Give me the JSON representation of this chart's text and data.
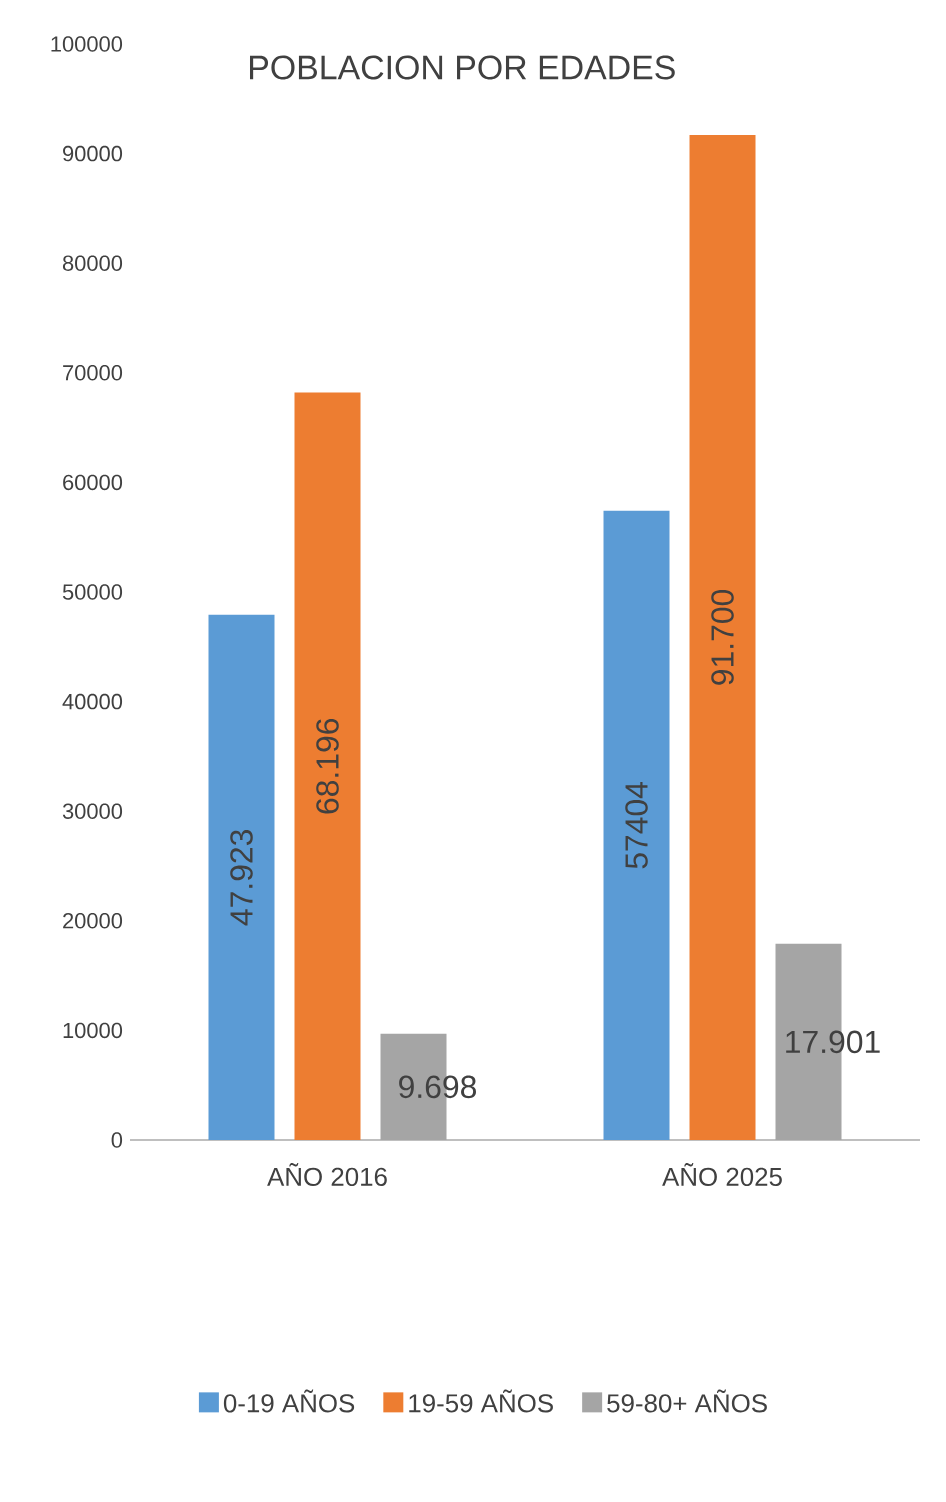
{
  "chart_data": {
    "type": "bar",
    "title": "POBLACION POR EDADES",
    "categories": [
      "AÑO 2016",
      "AÑO 2025"
    ],
    "series": [
      {
        "name": "0-19 AÑOS",
        "color": "#5b9bd5",
        "values": [
          47923,
          57404
        ],
        "value_labels": [
          "47.923",
          "57404"
        ]
      },
      {
        "name": "19-59 AÑOS",
        "color": "#ed7d31",
        "values": [
          68196,
          91700
        ],
        "value_labels": [
          "68.196",
          "91.700"
        ]
      },
      {
        "name": "59-80+ AÑOS",
        "color": "#a5a5a5",
        "values": [
          9698,
          17901
        ],
        "value_labels": [
          "9.698",
          "17.901"
        ]
      }
    ],
    "ylim": [
      0,
      100000
    ],
    "yticks": [
      0,
      10000,
      20000,
      30000,
      40000,
      50000,
      60000,
      70000,
      80000,
      90000,
      100000
    ],
    "grid": false,
    "legend": "bottom"
  }
}
